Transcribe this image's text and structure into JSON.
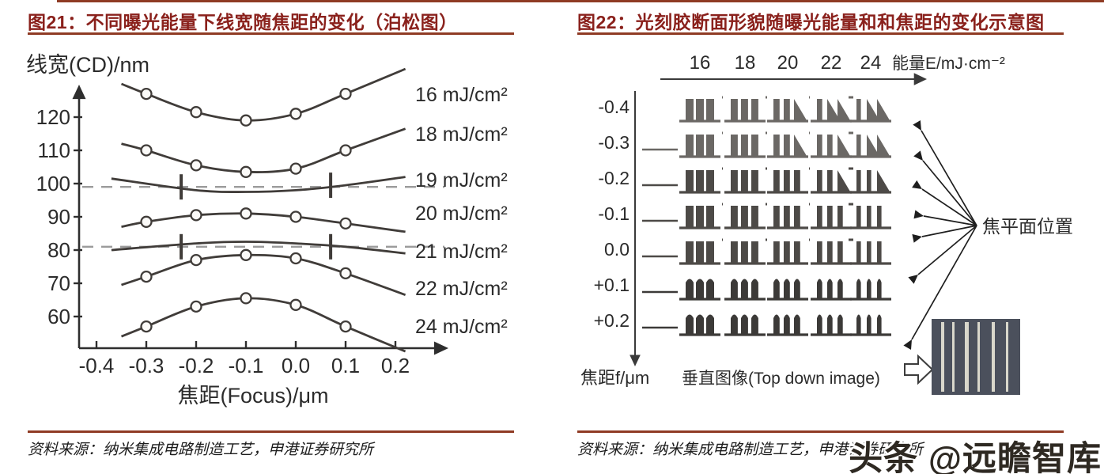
{
  "page": {
    "watermark": "头条 @远瞻智库"
  },
  "left_figure": {
    "title": "图21：不同曝光能量下线宽随焦距的变化（泊松图）",
    "source": "资料来源：纳米集成电路制造工艺，申港证券研究所"
  },
  "right_figure": {
    "title": "图22：光刻胶断面形貌随曝光能量和和焦距的变化示意图",
    "source": "资料来源：纳米集成电路制造工艺，申港证券研究所"
  },
  "colors": {
    "title_red": "#8A211C",
    "rule_red": "#8F3B24",
    "curve_ink": "#403c39",
    "diagram_gray": "#4d4a47",
    "dash_gray": "#9b9b9b",
    "thumbnail_bg": "#4b505c",
    "thumbnail_stripe": "#d9d7cb"
  },
  "chart_data": [
    {
      "type": "line",
      "title": "不同曝光能量下线宽随焦距的变化（泊松图）",
      "xlabel": "焦距(Focus)/μm",
      "ylabel": "线宽(CD)/nm",
      "x_ticks": [
        "-0.4",
        "-0.3",
        "-0.2",
        "-0.1",
        "0.0",
        "0.1",
        "0.2"
      ],
      "x_tick_values": [
        -0.4,
        -0.3,
        -0.2,
        -0.1,
        0.0,
        0.1,
        0.2
      ],
      "y_ticks": [
        120,
        110,
        100,
        90,
        80,
        70,
        60
      ],
      "xlim": [
        -0.45,
        0.25
      ],
      "ylim": [
        48,
        136
      ],
      "legend_position": "right",
      "grid": false,
      "series": [
        {
          "name": "16 mJ/cm²",
          "marker": "circle",
          "points": [
            [
              -0.35,
              130
            ],
            [
              -0.3,
              127
            ],
            [
              -0.2,
              121.5
            ],
            [
              -0.1,
              119
            ],
            [
              0,
              121
            ],
            [
              0.1,
              127
            ],
            [
              0.22,
              134.5
            ]
          ],
          "marker_points": [
            [
              -0.3,
              127
            ],
            [
              -0.2,
              121.5
            ],
            [
              -0.1,
              119
            ],
            [
              0,
              121
            ],
            [
              0.1,
              127
            ]
          ]
        },
        {
          "name": "18 mJ/cm²",
          "marker": "circle",
          "points": [
            [
              -0.35,
              112
            ],
            [
              -0.3,
              110
            ],
            [
              -0.2,
              105.5
            ],
            [
              -0.1,
              103.5
            ],
            [
              0,
              104.5
            ],
            [
              0.1,
              110
            ],
            [
              0.22,
              116.5
            ]
          ],
          "marker_points": [
            [
              -0.3,
              110
            ],
            [
              -0.2,
              105.5
            ],
            [
              -0.1,
              103.5
            ],
            [
              0,
              104.5
            ],
            [
              0.1,
              110
            ]
          ]
        },
        {
          "name": "19 mJ/cm²",
          "marker": "cross",
          "dash_y": 99,
          "points": [
            [
              -0.37,
              101.5
            ],
            [
              -0.2,
              98
            ],
            [
              -0.1,
              97.5
            ],
            [
              0,
              98
            ],
            [
              0.1,
              99.5
            ],
            [
              0.22,
              102
            ]
          ],
          "cross_points": [
            [
              -0.23,
              99
            ],
            [
              0.07,
              99.5
            ]
          ]
        },
        {
          "name": "20 mJ/cm²",
          "marker": "circle",
          "points": [
            [
              -0.35,
              87
            ],
            [
              -0.3,
              88.5
            ],
            [
              -0.2,
              90.5
            ],
            [
              -0.1,
              91
            ],
            [
              0,
              90
            ],
            [
              0.1,
              88
            ],
            [
              0.22,
              85.5
            ]
          ],
          "marker_points": [
            [
              -0.3,
              88.5
            ],
            [
              -0.2,
              90.5
            ],
            [
              -0.1,
              91
            ],
            [
              0,
              90
            ],
            [
              0.1,
              88
            ]
          ]
        },
        {
          "name": "21 mJ/cm²",
          "marker": "cross",
          "dash_y": 81,
          "points": [
            [
              -0.37,
              80
            ],
            [
              -0.2,
              82
            ],
            [
              -0.1,
              82.5
            ],
            [
              0,
              82
            ],
            [
              0.1,
              81
            ],
            [
              0.22,
              79
            ]
          ],
          "cross_points": [
            [
              -0.23,
              81
            ],
            [
              0.07,
              81
            ]
          ]
        },
        {
          "name": "22 mJ/cm²",
          "marker": "circle",
          "points": [
            [
              -0.35,
              69.5
            ],
            [
              -0.3,
              72
            ],
            [
              -0.2,
              77
            ],
            [
              -0.1,
              78.5
            ],
            [
              0,
              77.5
            ],
            [
              0.1,
              73
            ],
            [
              0.22,
              66.5
            ]
          ],
          "marker_points": [
            [
              -0.3,
              72
            ],
            [
              -0.2,
              77
            ],
            [
              -0.1,
              78.5
            ],
            [
              0,
              77.5
            ],
            [
              0.1,
              73
            ]
          ]
        },
        {
          "name": "24 mJ/cm²",
          "marker": "circle",
          "points": [
            [
              -0.35,
              54
            ],
            [
              -0.3,
              57
            ],
            [
              -0.2,
              63
            ],
            [
              -0.1,
              65.5
            ],
            [
              0,
              63.5
            ],
            [
              0.1,
              57
            ],
            [
              0.22,
              49.5
            ]
          ],
          "marker_points": [
            [
              -0.3,
              57
            ],
            [
              -0.2,
              63
            ],
            [
              -0.1,
              65.5
            ],
            [
              0,
              63.5
            ],
            [
              0.1,
              57
            ]
          ]
        }
      ]
    },
    {
      "type": "table",
      "title": "光刻胶断面形貌随曝光能量和焦距的变化示意图",
      "x_axis": {
        "label": "能量E/mJ·cm⁻²",
        "ticks": [
          "16",
          "18",
          "20",
          "22",
          "24"
        ]
      },
      "y_axis": {
        "label": "焦距f/μm",
        "ticks": [
          "-0.4",
          "-0.3",
          "-0.2",
          "-0.1",
          "0.0",
          "+0.1",
          "+0.2"
        ]
      },
      "annotation": "焦平面位置",
      "annotation_arrows": 7,
      "bottom_label": "垂直图像(Top down image)",
      "bars_per_cell": 3,
      "cell_description": "每格为3条光刻胶线条截面示意；离焦越大、能量越高，线条越细且顶部倾斜或圆化"
    }
  ]
}
